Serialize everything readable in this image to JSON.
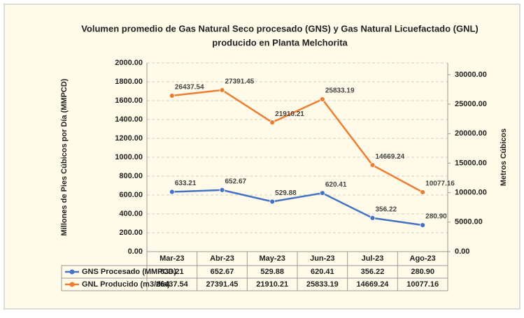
{
  "chart_data": {
    "type": "line",
    "title": [
      "Volumen promedio de Gas Natural Seco procesado (GNS) y Gas Natural Licuefactado (GNL)",
      "producido en Planta Melchorita"
    ],
    "y_label": "Millones de Pies Cúbicos por Día (MMPCD)",
    "y2_label": "Metros Cúbicos",
    "categories": [
      "Mar-23",
      "Abr-23",
      "May-23",
      "Jun-23",
      "Jul-23",
      "Ago-23"
    ],
    "series": [
      {
        "name": "GNS Procesado (MMPCD)",
        "color": "#4472c4",
        "values": [
          633.21,
          652.67,
          529.88,
          620.41,
          356.22,
          280.9
        ],
        "value_labels": [
          "633.21",
          "652.67",
          "529.88",
          "620.41",
          "356.22",
          "280.90"
        ]
      },
      {
        "name": "GNL Producido (m3/día)",
        "color": "#ed7d31",
        "axis": "y2",
        "values": [
          26437.54,
          27391.45,
          21910.21,
          25833.19,
          14669.24,
          10077.16
        ],
        "value_labels": [
          "26437.54",
          "27391.45",
          "21910.21",
          "25833.19",
          "14669.24",
          "10077.16"
        ]
      }
    ],
    "ylim": [
      0,
      2000
    ],
    "yticks": [
      {
        "value": 0,
        "label": "0.00"
      },
      {
        "value": 200,
        "label": "200.00"
      },
      {
        "value": 400,
        "label": "400.00"
      },
      {
        "value": 600,
        "label": "600.00"
      },
      {
        "value": 800,
        "label": "800.00"
      },
      {
        "value": 1000,
        "label": "1000.00"
      },
      {
        "value": 1200,
        "label": "1200.00"
      },
      {
        "value": 1400,
        "label": "1400.00"
      },
      {
        "value": 1600,
        "label": "1600.00"
      },
      {
        "value": 1800,
        "label": "1800.00"
      },
      {
        "value": 2000,
        "label": "2000.00"
      }
    ],
    "y2lim": [
      0,
      32000
    ],
    "y2ticks": [
      {
        "value": 0,
        "label": "0.00"
      },
      {
        "value": 5000,
        "label": "5000.00"
      },
      {
        "value": 10000,
        "label": "10000.00"
      },
      {
        "value": 15000,
        "label": "15000.00"
      },
      {
        "value": 20000,
        "label": "20000.00"
      },
      {
        "value": 25000,
        "label": "25000.00"
      },
      {
        "value": 30000,
        "label": "30000.00"
      }
    ],
    "grid": true
  }
}
